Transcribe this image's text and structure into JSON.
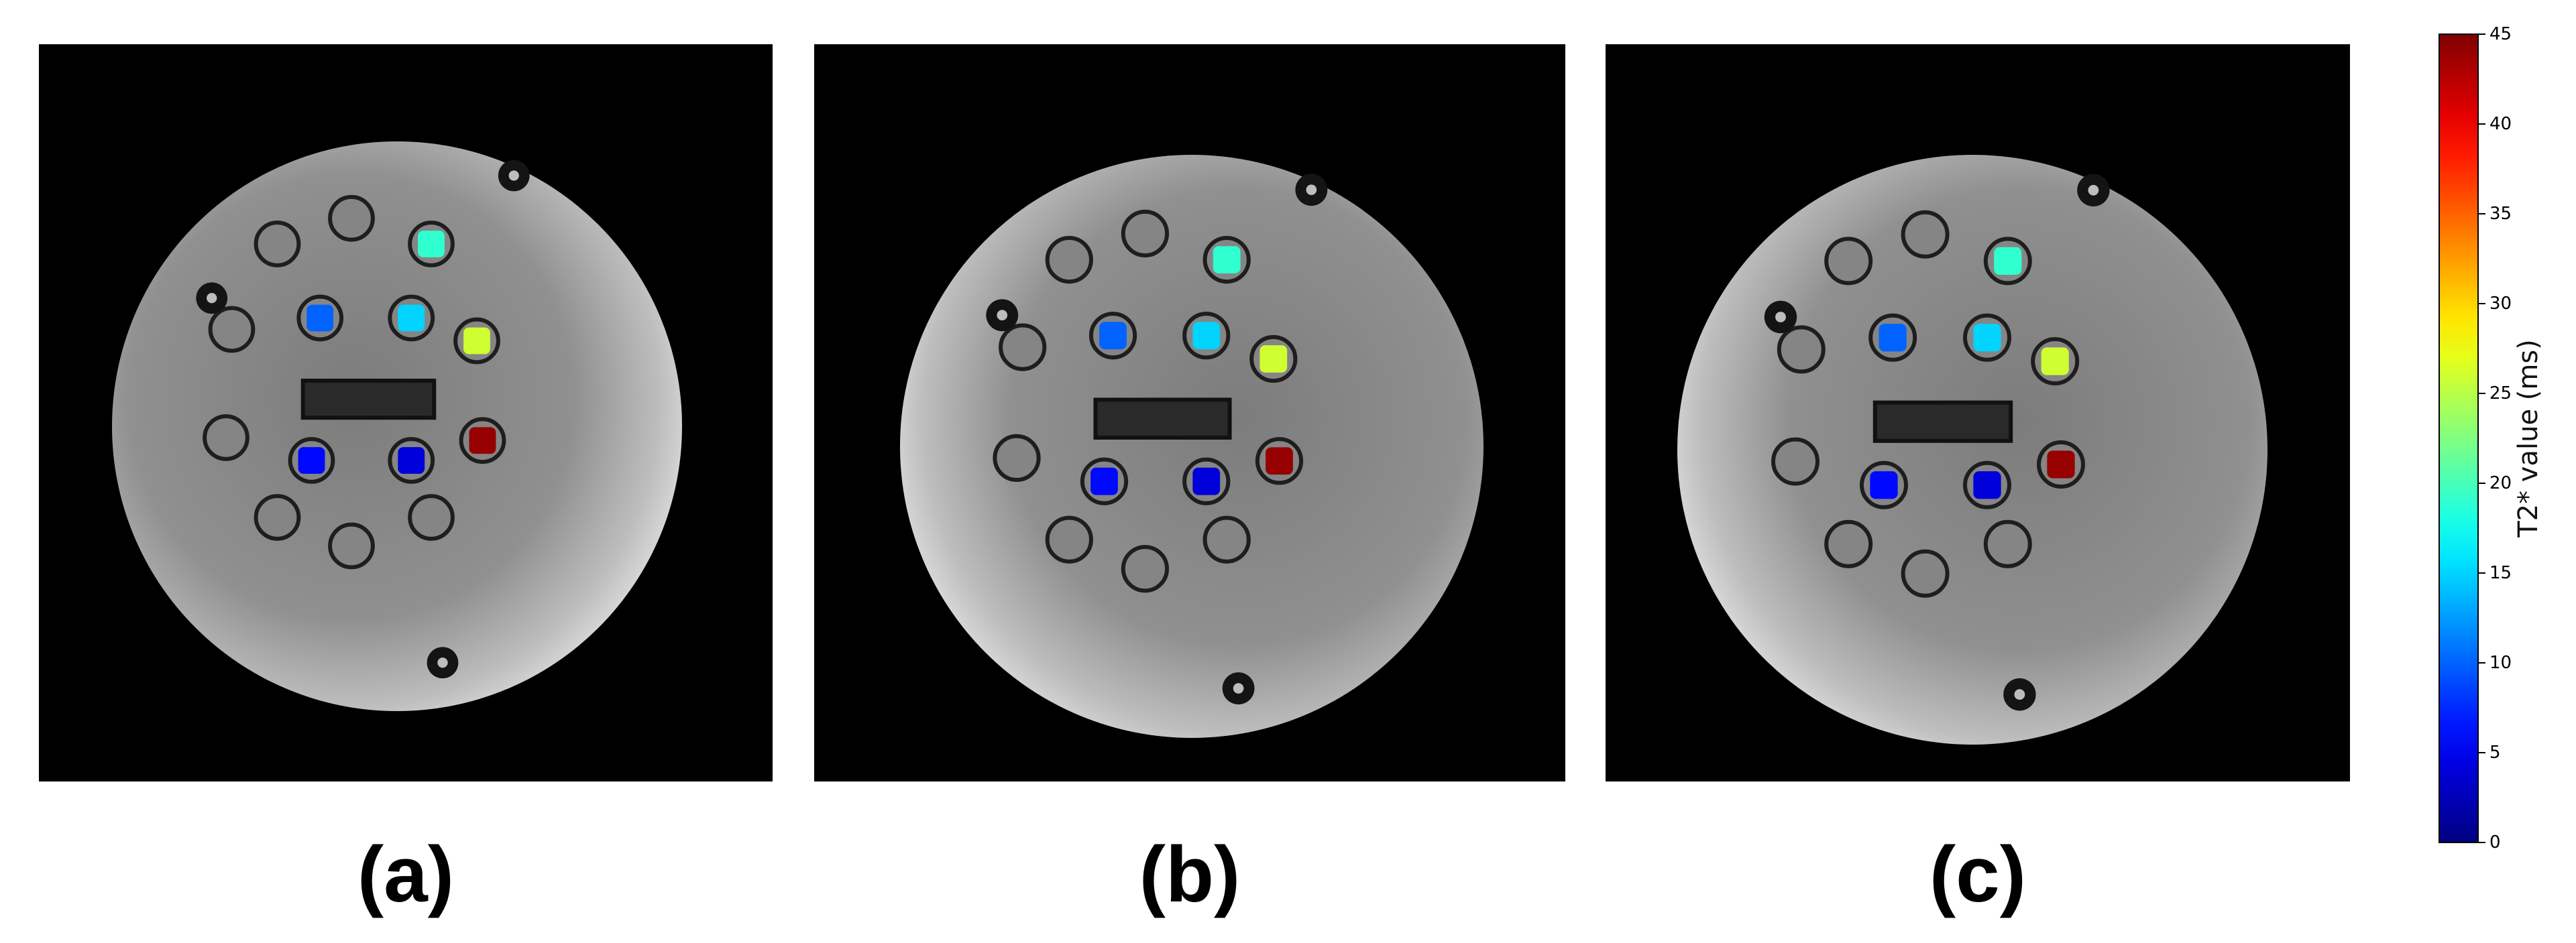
{
  "panels": [
    {
      "label": "(a)",
      "bright_edge": "left"
    },
    {
      "label": "(b)",
      "bright_edge": "right"
    },
    {
      "label": "(c)",
      "bright_edge": "right"
    }
  ],
  "vials": [
    {
      "t2star_ms": null
    },
    {
      "t2star_ms": null
    },
    {
      "t2star_ms": 19
    },
    {
      "t2star_ms": null
    },
    {
      "t2star_ms": 10
    },
    {
      "t2star_ms": 15
    },
    {
      "t2star_ms": 26
    },
    {
      "t2star_ms": null
    },
    {
      "t2star_ms": 6
    },
    {
      "t2star_ms": 4
    },
    {
      "t2star_ms": 44
    },
    {
      "t2star_ms": null
    },
    {
      "t2star_ms": null
    },
    {
      "t2star_ms": null
    }
  ],
  "colorbar": {
    "label": "T2* value (ms)",
    "colormap": "jet",
    "min": 0,
    "max": 45,
    "ticks": [
      "0",
      "5",
      "10",
      "15",
      "20",
      "25",
      "30",
      "35",
      "40",
      "45"
    ]
  },
  "colors": {
    "background": "#000000",
    "phantom_gray": "#8a8a8a",
    "marker_dark": "#141414"
  }
}
